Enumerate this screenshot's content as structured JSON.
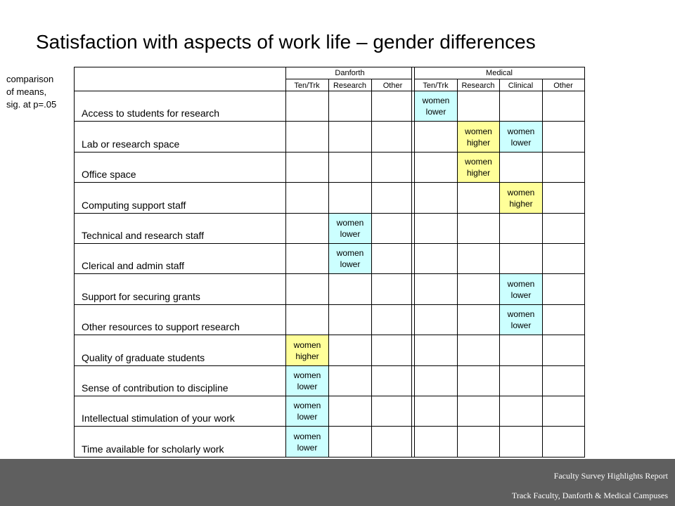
{
  "title": "Satisfaction with aspects of work life – gender differences",
  "side_note": [
    "comparison",
    "of means,",
    "sig. at p=.05"
  ],
  "groups": [
    "Danforth",
    "Medical"
  ],
  "columns": [
    "Ten/Trk",
    "Research",
    "Other",
    "Ten/Trk",
    "Research",
    "Clinical",
    "Other"
  ],
  "rows": [
    "Access to students for research",
    "Lab or research space",
    "Office space",
    "Computing support staff",
    "Technical and research staff",
    "Clerical and admin staff",
    "Support for securing grants",
    "Other resources to support research",
    "Quality of graduate students",
    "Sense of contribution to discipline",
    "Intellectual stimulation of your work",
    "Time available for scholarly work"
  ],
  "results": [
    {
      "row": 0,
      "col": 3,
      "line1": "women",
      "line2": "lower",
      "type": "lower"
    },
    {
      "row": 1,
      "col": 4,
      "line1": "women",
      "line2": "higher",
      "type": "higher"
    },
    {
      "row": 1,
      "col": 5,
      "line1": "women",
      "line2": "lower",
      "type": "lower"
    },
    {
      "row": 2,
      "col": 4,
      "line1": "women",
      "line2": "higher",
      "type": "higher"
    },
    {
      "row": 3,
      "col": 5,
      "line1": "women",
      "line2": "higher",
      "type": "higher"
    },
    {
      "row": 4,
      "col": 1,
      "line1": "women",
      "line2": "lower",
      "type": "lower"
    },
    {
      "row": 5,
      "col": 1,
      "line1": "women",
      "line2": "lower",
      "type": "lower"
    },
    {
      "row": 6,
      "col": 5,
      "line1": "women",
      "line2": "lower",
      "type": "lower"
    },
    {
      "row": 7,
      "col": 5,
      "line1": "women",
      "line2": "lower",
      "type": "lower"
    },
    {
      "row": 8,
      "col": 0,
      "line1": "women",
      "line2": "higher",
      "type": "higher"
    },
    {
      "row": 9,
      "col": 0,
      "line1": "women",
      "line2": "lower",
      "type": "lower"
    },
    {
      "row": 10,
      "col": 0,
      "line1": "women",
      "line2": "lower",
      "type": "lower"
    },
    {
      "row": 11,
      "col": 0,
      "line1": "women",
      "line2": "lower",
      "type": "lower"
    }
  ],
  "colors": {
    "lower": "#ccffff",
    "higher": "#ffff99",
    "footer": "#5f5f5f"
  },
  "footer": {
    "line1": "Faculty Survey Highlights Report",
    "line2": "Track Faculty, Danforth & Medical Campuses"
  }
}
